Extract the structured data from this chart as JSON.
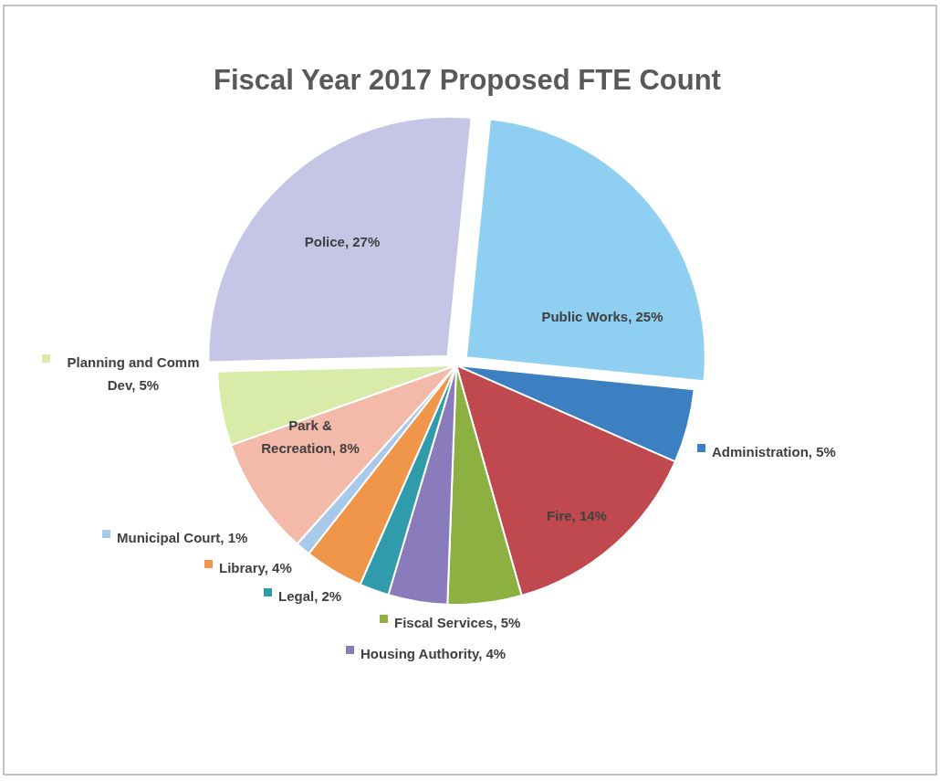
{
  "chart_data": {
    "type": "pie",
    "title": "Fiscal Year 2017 Proposed FTE Count",
    "categories": [
      "Public Works",
      "Administration",
      "Fire",
      "Fiscal Services",
      "Housing Authority",
      "Legal",
      "Library",
      "Municipal Court",
      "Park & Recreation",
      "Planning and Comm Dev",
      "Police"
    ],
    "values": [
      25,
      5,
      14,
      5,
      4,
      2,
      4,
      1,
      8,
      5,
      27
    ],
    "value_labels": [
      "25%",
      "5%",
      "14%",
      "5%",
      "4%",
      "2%",
      "4%",
      "1%",
      "8%",
      "5%",
      "27%"
    ],
    "colors": [
      "#8fd0f2",
      "#3c80c2",
      "#c0484f",
      "#8db043",
      "#8a7cbc",
      "#2f9bab",
      "#f0964a",
      "#a9c9ea",
      "#f3b9a9",
      "#d9eba9",
      "#c5c5e6"
    ],
    "data_labels": true,
    "legend": "bottom left"
  }
}
